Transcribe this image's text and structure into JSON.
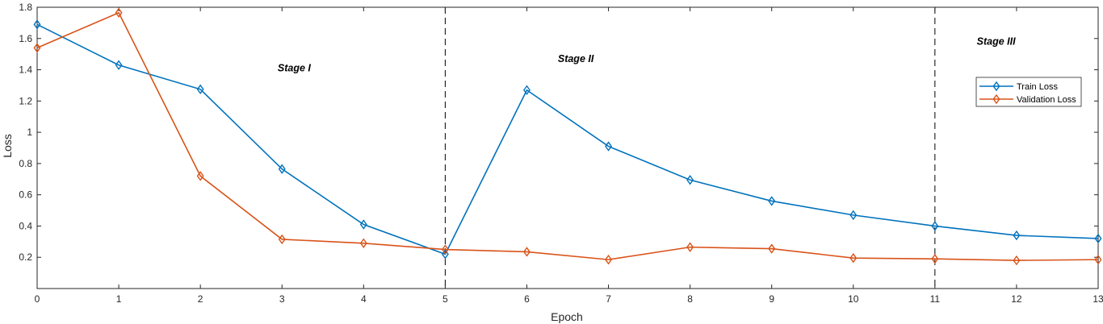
{
  "chart_data": {
    "type": "line",
    "xlabel": "Epoch",
    "ylabel": "Loss",
    "xlim": [
      0,
      13
    ],
    "ylim": [
      0,
      1.8
    ],
    "x_ticks": [
      "0",
      "1",
      "2",
      "3",
      "4",
      "5",
      "6",
      "7",
      "8",
      "9",
      "10",
      "11",
      "12",
      "13"
    ],
    "y_ticks": [
      "0.2",
      "0.4",
      "0.6",
      "0.8",
      "1",
      "1.2",
      "1.4",
      "1.6",
      "1.8"
    ],
    "grid": false,
    "legend_position": "right",
    "x": [
      0,
      1,
      2,
      3,
      4,
      5,
      6,
      7,
      8,
      9,
      10,
      11,
      12,
      13
    ],
    "series": [
      {
        "name": "Train Loss",
        "color": "#0072BD",
        "marker": "diamond",
        "values": [
          1.69,
          1.43,
          1.275,
          0.765,
          0.41,
          0.22,
          1.27,
          0.91,
          0.695,
          0.56,
          0.47,
          0.4,
          0.34,
          0.32
        ]
      },
      {
        "name": "Validation Loss",
        "color": "#D95319",
        "marker": "diamond",
        "values": [
          1.54,
          1.765,
          0.72,
          0.315,
          0.29,
          0.25,
          0.235,
          0.185,
          0.265,
          0.255,
          0.195,
          0.19,
          0.18,
          0.185
        ]
      }
    ],
    "stage_dividers": [
      5,
      11
    ],
    "annotations": [
      {
        "text": "Stage I",
        "x": 3.15,
        "y": 1.39
      },
      {
        "text": "Stage II",
        "x": 6.6,
        "y": 1.45
      },
      {
        "text": "Stage III",
        "x": 11.75,
        "y": 1.56
      }
    ]
  }
}
